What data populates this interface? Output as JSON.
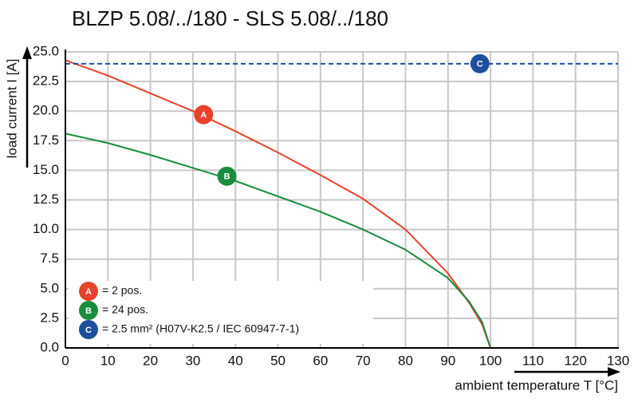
{
  "chart_data": {
    "type": "line",
    "title": "BLZP 5.08/../180 - SLS 5.08/../180",
    "x_label": "ambient temperature T [°C]",
    "y_label": "load current I [A]",
    "xlim": [
      0,
      130
    ],
    "ylim": [
      0,
      25
    ],
    "xticks": [
      0,
      10,
      20,
      30,
      40,
      50,
      60,
      70,
      80,
      90,
      100,
      110,
      120,
      130
    ],
    "yticks": [
      {
        "value": 0,
        "label": "0.0"
      },
      {
        "value": 2.5,
        "label": "2.5"
      },
      {
        "value": 5,
        "label": "5.0"
      },
      {
        "value": 7.5,
        "label": "7.5"
      },
      {
        "value": 10,
        "label": "10.0"
      },
      {
        "value": 12.5,
        "label": "12.5"
      },
      {
        "value": 15,
        "label": "15.0"
      },
      {
        "value": 17.5,
        "label": "17.5"
      },
      {
        "value": 20,
        "label": "20.0"
      },
      {
        "value": 22.5,
        "label": "22.5"
      },
      {
        "value": 25,
        "label": "25.0"
      }
    ],
    "grid": true,
    "series": [
      {
        "name": "= 2 pos.",
        "label": "A",
        "color": "#e8412c",
        "dashed": false,
        "x": [
          0,
          10,
          20,
          30,
          40,
          50,
          60,
          70,
          80,
          90,
          95,
          98,
          100
        ],
        "values": [
          24.3,
          23.0,
          21.5,
          20.0,
          18.3,
          16.5,
          14.6,
          12.6,
          10.0,
          6.3,
          3.8,
          2.0,
          0
        ],
        "badge": [
          32.5,
          19.7
        ]
      },
      {
        "name": "= 24 pos.",
        "label": "B",
        "color": "#1a8c3e",
        "dashed": false,
        "x": [
          0,
          10,
          20,
          30,
          40,
          50,
          60,
          70,
          80,
          90,
          95,
          98,
          100
        ],
        "values": [
          18.1,
          17.3,
          16.3,
          15.2,
          14.1,
          12.8,
          11.5,
          10.0,
          8.3,
          5.9,
          3.9,
          2.2,
          0
        ],
        "badge": [
          38,
          14.5
        ]
      },
      {
        "name": "= 2.5 mm² (H07V-K2.5 / IEC 60947-7-1)",
        "label": "C",
        "color": "#1e4f9c",
        "dashed": true,
        "x": [
          0,
          130
        ],
        "values": [
          24,
          24
        ],
        "badge": [
          97.5,
          24
        ]
      }
    ]
  }
}
